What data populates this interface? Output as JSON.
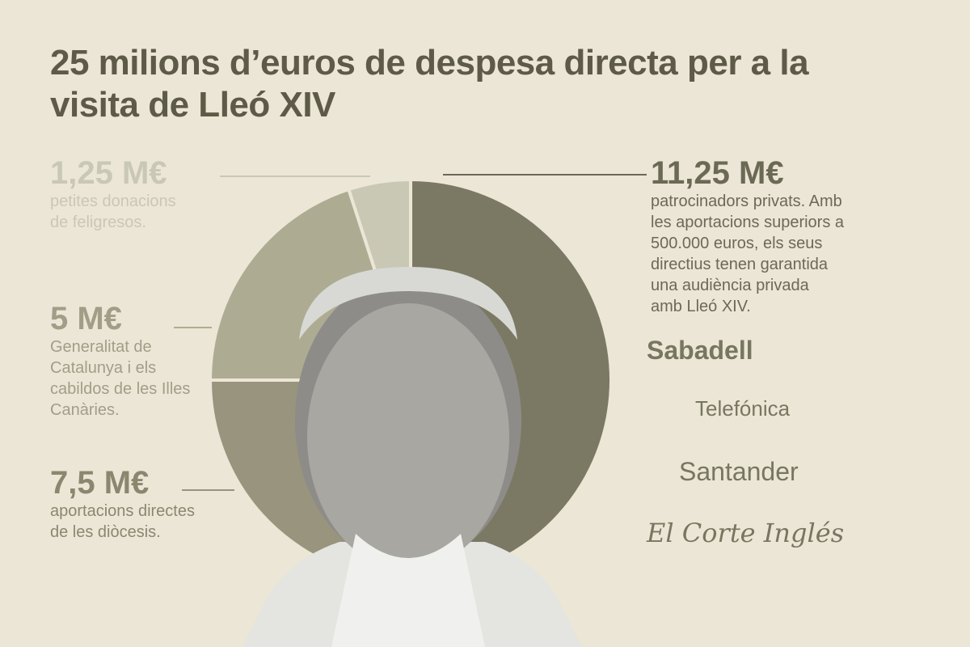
{
  "chart_data": {
    "type": "pie",
    "title": "25 milions d’euros de despesa directa per a la visita de Lleó XIV",
    "categories": [
      "patrocinadors privats. Amb les aportacions superiors a 500.000 euros, els seus directius tenen garantida una audiència privada amb Lleó XIV.",
      "aportacions directes de les diòcesis.",
      "Generalitat de Catalunya i els cabildos de les Illes Canàries.",
      "petites donacions de feligresos."
    ],
    "values": [
      11.25,
      7.5,
      5,
      1.25
    ],
    "value_labels": [
      "11,25 M€",
      "7,5 M€",
      "5 M€",
      "1,25 M€"
    ],
    "colors": [
      "#7b7963",
      "#98947d",
      "#aeab93",
      "#c9c8b4"
    ],
    "sponsors": [
      "Sabadell",
      "Telefónica",
      "Santander",
      "El Corte Inglés"
    ]
  }
}
